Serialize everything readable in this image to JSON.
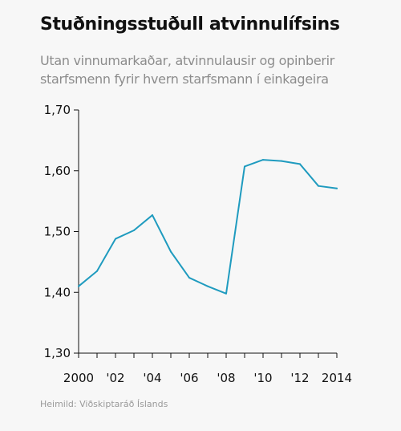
{
  "title": "Stuðningsstuðull atvinnulífsins",
  "subtitle": "Utan vinnumarkaðar, atvinnulausir og opinberir starfsmenn fyrir hvern starfsmann í einkageira",
  "source": "Heimild: Viðskiptaráð  Íslands",
  "chart_data": {
    "type": "line",
    "title": "Stuðningsstuðull atvinnulífsins",
    "subtitle": "Utan vinnumarkaðar, atvinnulausir og opinberir starfsmenn fyrir hvern starfsmann í einkageira",
    "xlabel": "",
    "ylabel": "",
    "x": [
      2000,
      2001,
      2002,
      2003,
      2004,
      2005,
      2006,
      2007,
      2008,
      2009,
      2010,
      2011,
      2012,
      2013,
      2014
    ],
    "xlim": [
      2000,
      2014
    ],
    "ylim": [
      1.3,
      1.7
    ],
    "x_ticks": [
      2000,
      2002,
      2004,
      2006,
      2008,
      2010,
      2012,
      2014
    ],
    "x_tick_labels": [
      "2000",
      "'02",
      "'04",
      "'06",
      "'08",
      "'10",
      "'12",
      "2014"
    ],
    "y_ticks": [
      1.3,
      1.4,
      1.5,
      1.6,
      1.7
    ],
    "y_tick_labels": [
      "1,30",
      "1,40",
      "1,50",
      "1,60",
      "1,70"
    ],
    "grid": false,
    "legend": "none",
    "color": "#1f9bbf",
    "series": [
      {
        "values": [
          1.41,
          1.435,
          1.488,
          1.502,
          1.527,
          1.467,
          1.424,
          1.41,
          1.398,
          1.607,
          1.618,
          1.616,
          1.611,
          1.575,
          1.571
        ]
      }
    ]
  }
}
